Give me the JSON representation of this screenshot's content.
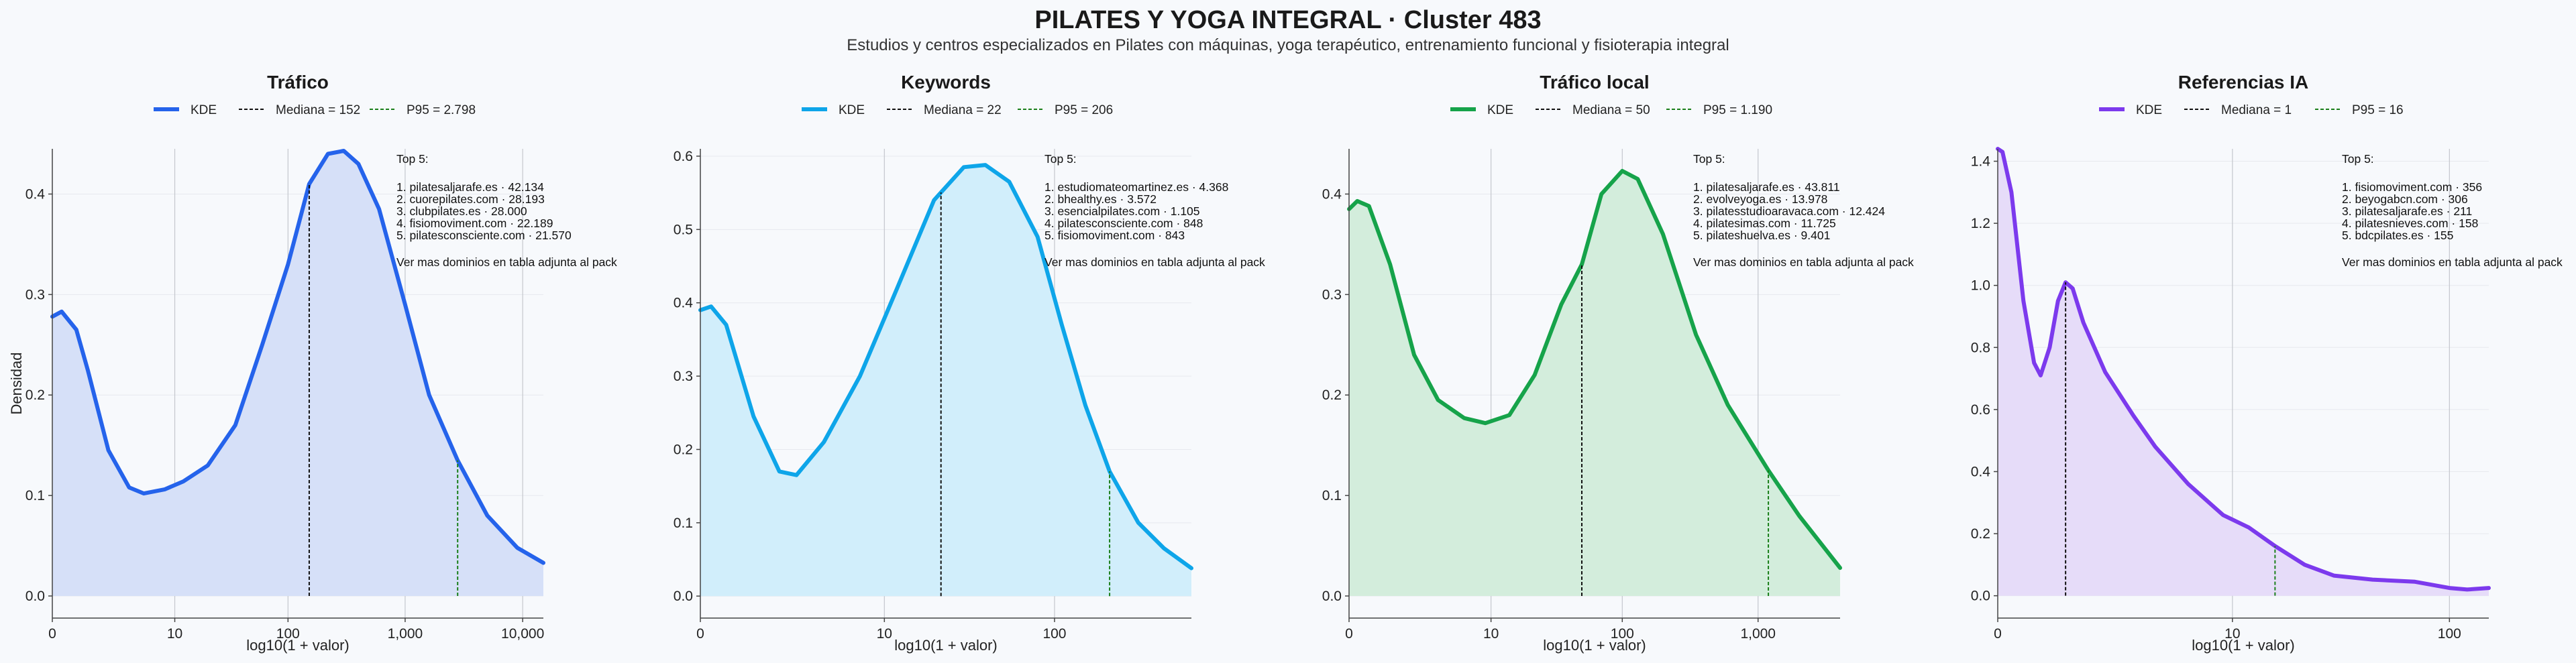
{
  "figure": {
    "title": "PILATES Y YOGA INTEGRAL · Cluster 483",
    "subtitle": "Estudios y centros especializados en Pilates con máquinas, yoga terapéutico, entrenamiento funcional y fisioterapia integral"
  },
  "chart_data": [
    {
      "type": "area",
      "title": "Tráfico",
      "color": "#2563eb",
      "fill": "#d6e0f8",
      "xlabel": "log10(1 + valor)",
      "ylabel": "Densidad",
      "x_scale": "log10(1 + x)",
      "xlim": [
        0,
        15000
      ],
      "ylim": [
        -0.022,
        0.445
      ],
      "xticks": [
        {
          "v": 0,
          "label": "0"
        },
        {
          "v": 10,
          "label": "10"
        },
        {
          "v": 100,
          "label": "100"
        },
        {
          "v": 1000,
          "label": "1,000"
        },
        {
          "v": 10000,
          "label": "10,000"
        }
      ],
      "yticks": [
        {
          "v": 0.0,
          "label": "0.0"
        },
        {
          "v": 0.1,
          "label": "0.1"
        },
        {
          "v": 0.2,
          "label": "0.2"
        },
        {
          "v": 0.3,
          "label": "0.3"
        },
        {
          "v": 0.4,
          "label": "0.4"
        }
      ],
      "legend": {
        "kde": "KDE",
        "median": "Mediana = 152",
        "p95": "P95 = 2.798"
      },
      "median": 152,
      "p95": 2798,
      "kde": [
        [
          0,
          0.278
        ],
        [
          0.2,
          0.283
        ],
        [
          0.6,
          0.265
        ],
        [
          1,
          0.225
        ],
        [
          2,
          0.145
        ],
        [
          3.5,
          0.108
        ],
        [
          5,
          0.102
        ],
        [
          8,
          0.106
        ],
        [
          12,
          0.114
        ],
        [
          20,
          0.13
        ],
        [
          35,
          0.17
        ],
        [
          60,
          0.25
        ],
        [
          100,
          0.33
        ],
        [
          152,
          0.41
        ],
        [
          220,
          0.44
        ],
        [
          300,
          0.443
        ],
        [
          400,
          0.43
        ],
        [
          600,
          0.385
        ],
        [
          1000,
          0.29
        ],
        [
          1600,
          0.2
        ],
        [
          2798,
          0.135
        ],
        [
          5000,
          0.08
        ],
        [
          9000,
          0.048
        ],
        [
          15000,
          0.033
        ]
      ],
      "top5": {
        "header": "Top 5:",
        "items": [
          "1. pilatesaljarafe.es · 42.134",
          "2. cuorepilates.com · 28.193",
          "3. clubpilates.es · 28.000",
          "4. fisiomoviment.com · 22.189",
          "5. pilatesconsciente.com · 21.570"
        ],
        "footer": "Ver mas dominios en tabla adjunta al pack"
      }
    },
    {
      "type": "area",
      "title": "Keywords",
      "color": "#0ea5e9",
      "fill": "#d1eefb",
      "xlabel": "log10(1 + valor)",
      "ylabel": "",
      "x_scale": "log10(1 + x)",
      "xlim": [
        0,
        600
      ],
      "ylim": [
        -0.03,
        0.61
      ],
      "xticks": [
        {
          "v": 0,
          "label": "0"
        },
        {
          "v": 10,
          "label": "10"
        },
        {
          "v": 100,
          "label": "100"
        }
      ],
      "yticks": [
        {
          "v": 0.0,
          "label": "0.0"
        },
        {
          "v": 0.1,
          "label": "0.1"
        },
        {
          "v": 0.2,
          "label": "0.2"
        },
        {
          "v": 0.3,
          "label": "0.3"
        },
        {
          "v": 0.4,
          "label": "0.4"
        },
        {
          "v": 0.5,
          "label": "0.5"
        },
        {
          "v": 0.6,
          "label": "0.6"
        }
      ],
      "legend": {
        "kde": "KDE",
        "median": "Mediana = 22",
        "p95": "P95 = 206"
      },
      "median": 22,
      "p95": 206,
      "kde": [
        [
          0,
          0.39
        ],
        [
          0.15,
          0.395
        ],
        [
          0.4,
          0.37
        ],
        [
          1,
          0.245
        ],
        [
          1.8,
          0.17
        ],
        [
          2.5,
          0.165
        ],
        [
          4,
          0.21
        ],
        [
          7,
          0.3
        ],
        [
          12,
          0.42
        ],
        [
          20,
          0.54
        ],
        [
          30,
          0.585
        ],
        [
          40,
          0.588
        ],
        [
          55,
          0.565
        ],
        [
          80,
          0.49
        ],
        [
          110,
          0.37
        ],
        [
          150,
          0.26
        ],
        [
          206,
          0.17
        ],
        [
          300,
          0.1
        ],
        [
          420,
          0.065
        ],
        [
          600,
          0.038
        ]
      ],
      "top5": {
        "header": "Top 5:",
        "items": [
          "1. estudiomateomartinez.es · 4.368",
          "2. bhealthy.es · 3.572",
          "3. esencialpilates.com · 1.105",
          "4. pilatesconsciente.com · 848",
          "5. fisiomoviment.com · 843"
        ],
        "footer": "Ver mas dominios en tabla adjunta al pack"
      }
    },
    {
      "type": "area",
      "title": "Tráfico local",
      "color": "#16a34a",
      "fill": "#d3eddc",
      "xlabel": "log10(1 + valor)",
      "ylabel": "",
      "x_scale": "log10(1 + x)",
      "xlim": [
        0,
        4000
      ],
      "ylim": [
        -0.022,
        0.445
      ],
      "xticks": [
        {
          "v": 0,
          "label": "0"
        },
        {
          "v": 10,
          "label": "10"
        },
        {
          "v": 100,
          "label": "100"
        },
        {
          "v": 1000,
          "label": "1,000"
        }
      ],
      "yticks": [
        {
          "v": 0.0,
          "label": "0.0"
        },
        {
          "v": 0.1,
          "label": "0.1"
        },
        {
          "v": 0.2,
          "label": "0.2"
        },
        {
          "v": 0.3,
          "label": "0.3"
        },
        {
          "v": 0.4,
          "label": "0.4"
        }
      ],
      "legend": {
        "kde": "KDE",
        "median": "Mediana = 50",
        "p95": "P95 = 1.190"
      },
      "median": 50,
      "p95": 1190,
      "kde": [
        [
          0,
          0.385
        ],
        [
          0.15,
          0.393
        ],
        [
          0.4,
          0.388
        ],
        [
          1,
          0.33
        ],
        [
          2,
          0.24
        ],
        [
          3.5,
          0.195
        ],
        [
          6,
          0.177
        ],
        [
          9,
          0.172
        ],
        [
          14,
          0.18
        ],
        [
          22,
          0.22
        ],
        [
          35,
          0.29
        ],
        [
          50,
          0.33
        ],
        [
          70,
          0.4
        ],
        [
          100,
          0.423
        ],
        [
          130,
          0.415
        ],
        [
          200,
          0.36
        ],
        [
          350,
          0.26
        ],
        [
          600,
          0.19
        ],
        [
          1190,
          0.125
        ],
        [
          2000,
          0.08
        ],
        [
          4000,
          0.028
        ]
      ],
      "top5": {
        "header": "Top 5:",
        "items": [
          "1. pilatesaljarafe.es · 43.811",
          "2. evolveyoga.es · 13.978",
          "3. pilatesstudioaravaca.com · 12.424",
          "4. pilatesimas.com · 11.725",
          "5. pilateshuelva.es · 9.401"
        ],
        "footer": "Ver mas dominios en tabla adjunta al pack"
      }
    },
    {
      "type": "area",
      "title": "Referencias IA",
      "color": "#7c3aed",
      "fill": "#e6dcf9",
      "xlabel": "log10(1 + valor)",
      "ylabel": "",
      "x_scale": "log10(1 + x)",
      "xlim": [
        0,
        150
      ],
      "ylim": [
        -0.072,
        1.44
      ],
      "xticks": [
        {
          "v": 0,
          "label": "0"
        },
        {
          "v": 10,
          "label": "10"
        },
        {
          "v": 100,
          "label": "100"
        }
      ],
      "yticks": [
        {
          "v": 0.0,
          "label": "0.0"
        },
        {
          "v": 0.2,
          "label": "0.2"
        },
        {
          "v": 0.4,
          "label": "0.4"
        },
        {
          "v": 0.6,
          "label": "0.6"
        },
        {
          "v": 0.8,
          "label": "0.8"
        },
        {
          "v": 1.0,
          "label": "1.0"
        },
        {
          "v": 1.2,
          "label": "1.2"
        },
        {
          "v": 1.4,
          "label": "1.4"
        }
      ],
      "legend": {
        "kde": "KDE",
        "median": "Mediana = 1",
        "p95": "P95 = 16"
      },
      "median": 1,
      "p95": 16,
      "kde": [
        [
          0,
          1.44
        ],
        [
          0.05,
          1.43
        ],
        [
          0.15,
          1.3
        ],
        [
          0.3,
          0.95
        ],
        [
          0.45,
          0.75
        ],
        [
          0.55,
          0.71
        ],
        [
          0.7,
          0.8
        ],
        [
          0.85,
          0.95
        ],
        [
          1,
          1.01
        ],
        [
          1.15,
          0.99
        ],
        [
          1.4,
          0.88
        ],
        [
          2,
          0.72
        ],
        [
          3,
          0.58
        ],
        [
          4,
          0.48
        ],
        [
          6,
          0.36
        ],
        [
          9,
          0.26
        ],
        [
          12,
          0.22
        ],
        [
          16,
          0.16
        ],
        [
          22,
          0.1
        ],
        [
          30,
          0.065
        ],
        [
          45,
          0.052
        ],
        [
          70,
          0.045
        ],
        [
          100,
          0.025
        ],
        [
          120,
          0.02
        ],
        [
          150,
          0.025
        ]
      ],
      "top5": {
        "header": "Top 5:",
        "items": [
          "1. fisiomoviment.com · 356",
          "2. beyogabcn.com · 306",
          "3. pilatesaljarafe.es · 211",
          "4. pilatesnieves.com · 158",
          "5. bdcpilates.es · 155"
        ],
        "footer": "Ver mas dominios en tabla adjunta al pack"
      }
    }
  ]
}
